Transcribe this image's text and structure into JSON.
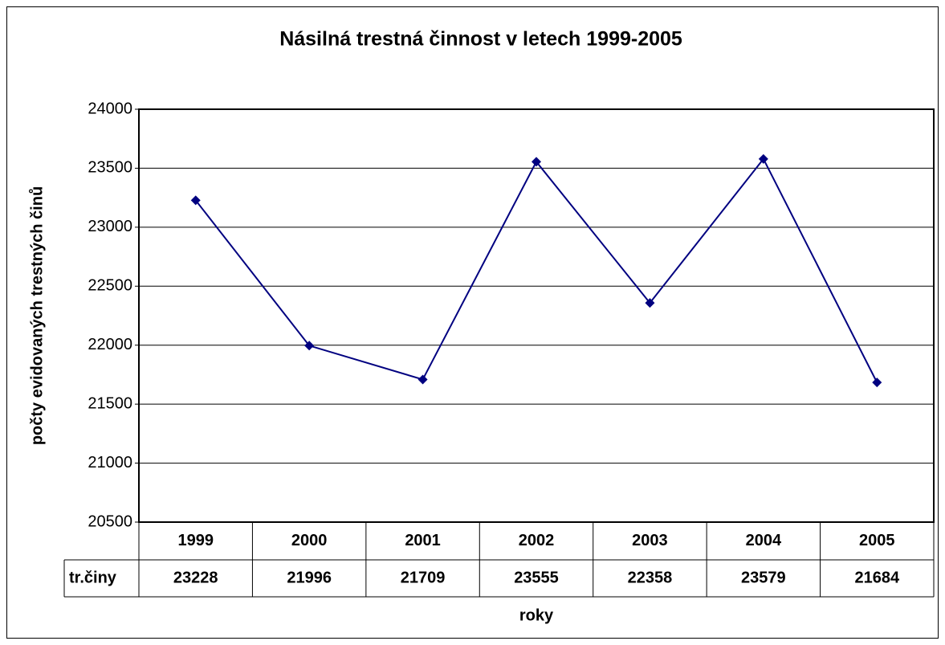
{
  "chart_data": {
    "type": "line",
    "title": "Násilná trestná činnost v letech 1999-2005",
    "x_label": "roky",
    "y_label": "počty evidovaných trestných činů",
    "categories": [
      "1999",
      "2000",
      "2001",
      "2002",
      "2003",
      "2004",
      "2005"
    ],
    "series": [
      {
        "name": "tr.činy",
        "color": "#000080",
        "values": [
          23228,
          21996,
          21709,
          23555,
          22358,
          23579,
          21684
        ]
      }
    ],
    "ylim": [
      20500,
      24000
    ],
    "yticks": [
      20500,
      21000,
      21500,
      22000,
      22500,
      23000,
      23500,
      24000
    ],
    "grid": true
  }
}
